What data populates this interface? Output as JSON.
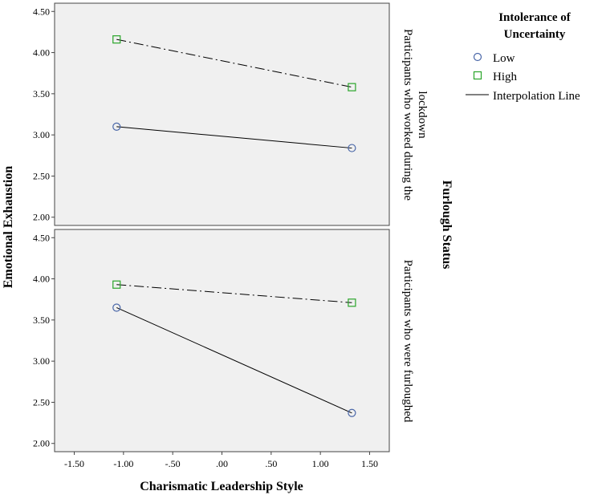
{
  "chart_data": {
    "type": "line",
    "xlabel": "Charismatic Leadership Style",
    "ylabel": "Emotional Exhaustion",
    "strip_title": "Furlough Status",
    "xlim": [
      -1.7,
      1.7
    ],
    "ylim": [
      1.9,
      4.6
    ],
    "x_ticks": [
      -1.5,
      -1.0,
      -0.5,
      0.0,
      0.5,
      1.0,
      1.5
    ],
    "x_tick_labels": [
      "-1.50",
      "-1.00",
      "-.50",
      ".00",
      ".50",
      "1.00",
      "1.50"
    ],
    "y_ticks": [
      2.0,
      2.5,
      3.0,
      3.5,
      4.0,
      4.5
    ],
    "y_tick_labels": [
      "2.00",
      "2.50",
      "3.00",
      "3.50",
      "4.00",
      "4.50"
    ],
    "legend": {
      "title_line1": "Intolerance of",
      "title_line2": "Uncertainty",
      "entries": [
        {
          "label": "Low",
          "marker": "circle",
          "color": "#4a67a8"
        },
        {
          "label": "High",
          "marker": "square",
          "color": "#2aa52a"
        },
        {
          "label": "Interpolation Line",
          "marker": "line",
          "color": "#000000"
        }
      ]
    },
    "panels": [
      {
        "label_line1": "Participants who worked during the",
        "label_line2": "lockdown",
        "series": [
          {
            "name": "Low",
            "x": [
              -1.07,
              1.32
            ],
            "y": [
              3.1,
              2.84
            ]
          },
          {
            "name": "High",
            "x": [
              -1.07,
              1.32
            ],
            "y": [
              4.16,
              3.58
            ]
          }
        ]
      },
      {
        "label_line1": "Participants who were furloughed",
        "label_line2": "",
        "series": [
          {
            "name": "Low",
            "x": [
              -1.07,
              1.32
            ],
            "y": [
              3.65,
              2.37
            ]
          },
          {
            "name": "High",
            "x": [
              -1.07,
              1.32
            ],
            "y": [
              3.93,
              3.71
            ]
          }
        ]
      }
    ]
  }
}
